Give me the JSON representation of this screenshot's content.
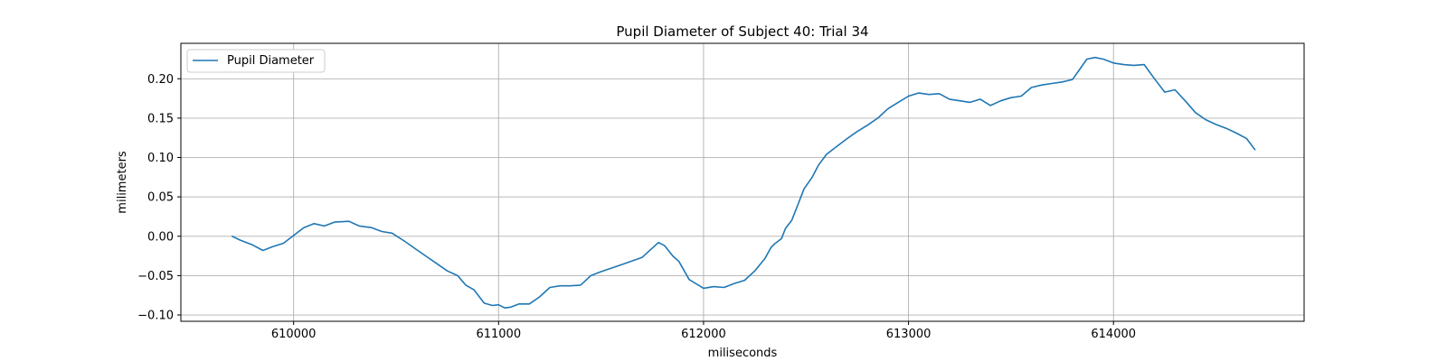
{
  "chart_data": {
    "type": "line",
    "title": "Pupil Diameter of Subject 40: Trial 34",
    "xlabel": "miliseconds",
    "ylabel": "milimeters",
    "xlim": [
      609450,
      614930
    ],
    "ylim": [
      -0.108,
      0.245
    ],
    "xticks": [
      610000,
      611000,
      612000,
      613000,
      614000
    ],
    "xtick_labels": [
      "610000",
      "611000",
      "612000",
      "613000",
      "614000"
    ],
    "yticks": [
      -0.1,
      -0.05,
      0.0,
      0.05,
      0.1,
      0.15,
      0.2
    ],
    "ytick_labels": [
      "−0.10",
      "−0.05",
      "0.00",
      "0.05",
      "0.10",
      "0.15",
      "0.20"
    ],
    "grid": true,
    "legend": {
      "position": "upper-left",
      "entries": [
        "Pupil Diameter"
      ]
    },
    "series": [
      {
        "name": "Pupil Diameter",
        "color": "#1f77b4",
        "x": [
          609700,
          609740,
          609800,
          609850,
          609900,
          609950,
          610000,
          610050,
          610100,
          610150,
          610200,
          610270,
          610320,
          610380,
          610430,
          610480,
          610540,
          610600,
          610650,
          610700,
          610750,
          610800,
          610840,
          610880,
          610930,
          610970,
          611000,
          611030,
          611060,
          611100,
          611150,
          611200,
          611250,
          611300,
          611350,
          611400,
          611450,
          611500,
          611600,
          611700,
          611780,
          611810,
          611850,
          611880,
          611930,
          612000,
          612050,
          612100,
          612150,
          612200,
          612250,
          612300,
          612330,
          612350,
          612380,
          612400,
          612430,
          612460,
          612490,
          612530,
          612560,
          612600,
          612640,
          612700,
          612750,
          612800,
          612850,
          612900,
          612950,
          613000,
          613050,
          613100,
          613150,
          613200,
          613250,
          613300,
          613350,
          613400,
          613450,
          613500,
          613550,
          613600,
          613650,
          613700,
          613750,
          613800,
          613830,
          613870,
          613910,
          613950,
          614000,
          614050,
          614100,
          614150,
          614200,
          614250,
          614300,
          614350,
          614400,
          614450,
          614500,
          614550,
          614600,
          614650,
          614690
        ],
        "values": [
          0.0,
          -0.005,
          -0.011,
          -0.018,
          -0.013,
          -0.009,
          0.001,
          0.011,
          0.016,
          0.013,
          0.018,
          0.019,
          0.013,
          0.011,
          0.006,
          0.004,
          -0.006,
          -0.017,
          -0.026,
          -0.035,
          -0.044,
          -0.05,
          -0.062,
          -0.068,
          -0.085,
          -0.088,
          -0.087,
          -0.091,
          -0.09,
          -0.086,
          -0.086,
          -0.077,
          -0.065,
          -0.063,
          -0.063,
          -0.062,
          -0.05,
          -0.045,
          -0.036,
          -0.027,
          -0.008,
          -0.012,
          -0.025,
          -0.032,
          -0.055,
          -0.066,
          -0.064,
          -0.065,
          -0.06,
          -0.056,
          -0.044,
          -0.028,
          -0.014,
          -0.009,
          -0.003,
          0.01,
          0.02,
          0.04,
          0.06,
          0.075,
          0.09,
          0.104,
          0.112,
          0.124,
          0.133,
          0.141,
          0.15,
          0.162,
          0.17,
          0.178,
          0.182,
          0.18,
          0.181,
          0.174,
          0.172,
          0.17,
          0.174,
          0.166,
          0.172,
          0.176,
          0.178,
          0.189,
          0.192,
          0.194,
          0.196,
          0.199,
          0.21,
          0.225,
          0.227,
          0.225,
          0.22,
          0.218,
          0.217,
          0.218,
          0.2,
          0.183,
          0.186,
          0.172,
          0.157,
          0.148,
          0.142,
          0.137,
          0.131,
          0.124,
          0.11
        ]
      }
    ]
  }
}
